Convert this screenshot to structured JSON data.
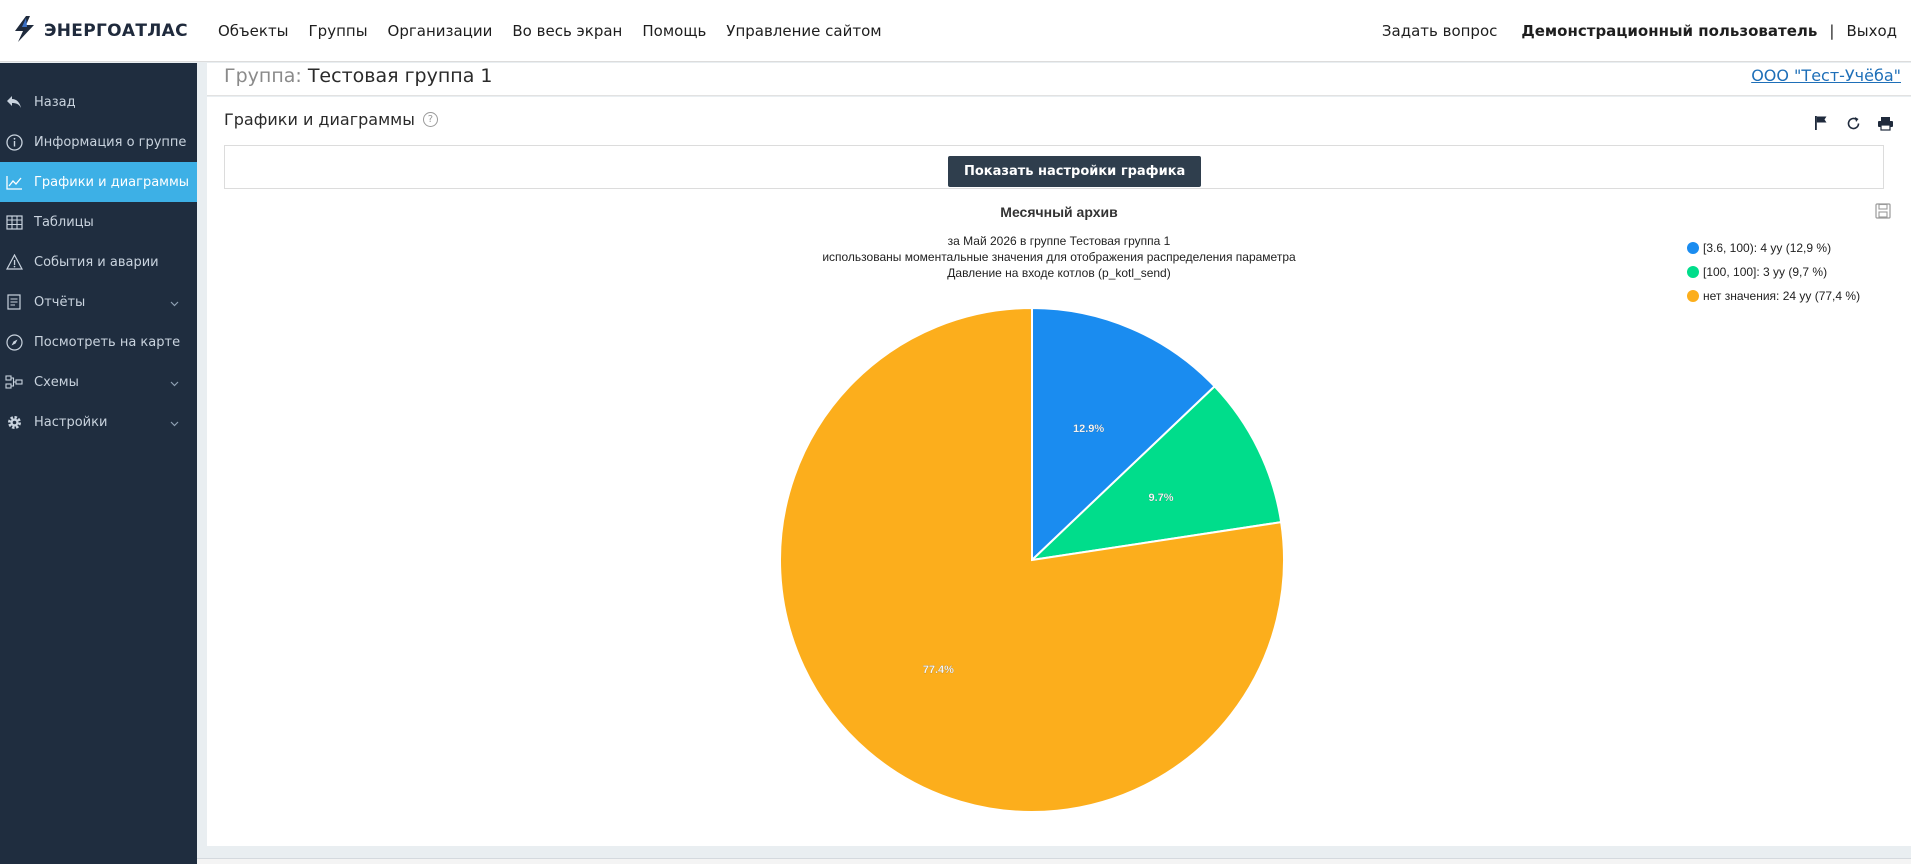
{
  "app": {
    "logo_text": "ЭНЕРГОАТЛАС"
  },
  "topnav": {
    "items": [
      "Объекты",
      "Группы",
      "Организации",
      "Во весь экран",
      "Помощь",
      "Управление сайтом"
    ],
    "ask": "Задать вопрос",
    "user": "Демонстрационный пользователь",
    "separator": "|",
    "logout": "Выход"
  },
  "sidebar": {
    "items": [
      {
        "label": "Назад",
        "icon": "back-arrow-icon"
      },
      {
        "label": "Информация о группе",
        "icon": "info-icon"
      },
      {
        "label": "Графики и диаграммы",
        "icon": "chart-line-icon",
        "active": true
      },
      {
        "label": "Таблицы",
        "icon": "table-icon"
      },
      {
        "label": "События и аварии",
        "icon": "warning-icon"
      },
      {
        "label": "Отчёты",
        "icon": "report-icon",
        "expandable": true
      },
      {
        "label": "Посмотреть на карте",
        "icon": "compass-icon"
      },
      {
        "label": "Схемы",
        "icon": "scheme-icon",
        "expandable": true
      },
      {
        "label": "Настройки",
        "icon": "gear-icon",
        "expandable": true
      }
    ]
  },
  "group_header": {
    "label": "Группа:",
    "name": "Тестовая группа 1",
    "organization": "ООО \"Тест-Учёба\""
  },
  "panel": {
    "title": "Графики и диаграммы",
    "help_symbol": "?",
    "settings_button": "Показать настройки графика"
  },
  "chart_data": {
    "type": "pie",
    "title": "Месячный архив",
    "subtitle_lines": [
      "за Май 2026 в группе Тестовая группа 1",
      "использованы моментальные значения для отображения распределения параметра",
      "Давление на входе котлов (p_kotl_send)"
    ],
    "slices": [
      {
        "label": "[3.6, 100): 4 уу (12,9 %)",
        "value": 12.9,
        "data_label": "12.9%",
        "color": "#1a8cf0"
      },
      {
        "label": "[100, 100]: 3 уу (9,7 %)",
        "value": 9.7,
        "data_label": "9.7%",
        "color": "#00dd8b"
      },
      {
        "label": "нет значения: 24 уу (77,4 %)",
        "value": 77.4,
        "data_label": "77.4%",
        "color": "#fcae1c"
      }
    ],
    "legend_position": "top-right"
  },
  "colors": {
    "sidebar_bg": "#1f2d3f",
    "sidebar_active": "#3db0e6",
    "button_dark": "#2f3e4d",
    "link": "#1e6fb8"
  }
}
